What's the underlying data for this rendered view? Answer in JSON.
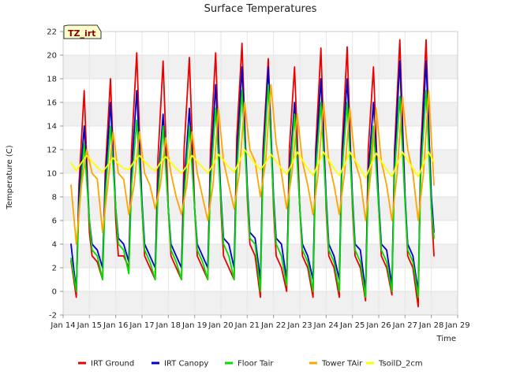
{
  "chart_data": {
    "type": "line",
    "title": "Surface Temperatures",
    "xlabel": "Time",
    "ylabel": "Temperature (C)",
    "badge": "TZ_irt",
    "xlim": [
      14,
      29
    ],
    "ylim": [
      -2,
      22
    ],
    "x_ticks": [
      {
        "value": 14,
        "label": "Jan 14"
      },
      {
        "value": 15,
        "label": "Jan 15"
      },
      {
        "value": 16,
        "label": "Jan 16"
      },
      {
        "value": 17,
        "label": "Jan 17"
      },
      {
        "value": 18,
        "label": "Jan 18"
      },
      {
        "value": 19,
        "label": "Jan 19"
      },
      {
        "value": 20,
        "label": "Jan 20"
      },
      {
        "value": 21,
        "label": "Jan 21"
      },
      {
        "value": 22,
        "label": "Jan 22"
      },
      {
        "value": 23,
        "label": "Jan 23"
      },
      {
        "value": 24,
        "label": "Jan 24"
      },
      {
        "value": 25,
        "label": "Jan 25"
      },
      {
        "value": 26,
        "label": "Jan 26"
      },
      {
        "value": 27,
        "label": "Jan 27"
      },
      {
        "value": 28,
        "label": "Jan 28"
      },
      {
        "value": 29,
        "label": "Jan 29"
      }
    ],
    "y_ticks": [
      -2,
      0,
      2,
      4,
      6,
      8,
      10,
      12,
      14,
      16,
      18,
      20,
      22
    ],
    "legend_position": "bottom",
    "grid": "alternating horizontal bands",
    "series": [
      {
        "name": "IRT Ground",
        "color": "#ee0000",
        "x": [
          14.3,
          14.5,
          14.6,
          14.8,
          15.0,
          15.1,
          15.3,
          15.5,
          15.6,
          15.8,
          16.0,
          16.1,
          16.3,
          16.5,
          16.6,
          16.8,
          17.0,
          17.1,
          17.3,
          17.5,
          17.6,
          17.8,
          18.0,
          18.1,
          18.3,
          18.5,
          18.6,
          18.8,
          19.0,
          19.1,
          19.3,
          19.5,
          19.6,
          19.8,
          20.0,
          20.1,
          20.3,
          20.5,
          20.6,
          20.8,
          21.0,
          21.1,
          21.3,
          21.5,
          21.6,
          21.8,
          22.0,
          22.1,
          22.3,
          22.5,
          22.6,
          22.8,
          23.0,
          23.1,
          23.3,
          23.5,
          23.6,
          23.8,
          24.0,
          24.1,
          24.3,
          24.5,
          24.6,
          24.8,
          25.0,
          25.1,
          25.3,
          25.5,
          25.6,
          25.8,
          26.0,
          26.1,
          26.3,
          26.5,
          26.6,
          26.8,
          27.0,
          27.1,
          27.3,
          27.5,
          27.6,
          27.8,
          28.0,
          28.1
        ],
        "y": [
          2.6,
          -0.5,
          9.0,
          17.0,
          5.0,
          3.0,
          2.5,
          1.0,
          10.0,
          18.0,
          6.0,
          3.0,
          3.0,
          2.0,
          12.0,
          20.2,
          7.0,
          3.0,
          2.0,
          1.0,
          11.0,
          19.5,
          7.0,
          3.0,
          2.0,
          1.0,
          12.0,
          19.8,
          7.0,
          3.0,
          2.0,
          1.0,
          12.0,
          20.2,
          7.0,
          3.0,
          2.0,
          1.0,
          13.0,
          21.0,
          8.0,
          4.0,
          3.0,
          -0.5,
          12.0,
          19.7,
          7.0,
          3.0,
          2.0,
          0.0,
          12.0,
          19.0,
          7.0,
          3.0,
          2.0,
          -0.5,
          12.0,
          20.6,
          7.0,
          3.0,
          2.0,
          -0.5,
          12.0,
          20.7,
          7.0,
          3.0,
          2.0,
          -0.8,
          12.0,
          19.0,
          7.0,
          3.0,
          2.0,
          -0.3,
          12.0,
          21.3,
          8.0,
          3.0,
          2.0,
          -1.3,
          12.0,
          21.3,
          7.0,
          3.0
        ]
      },
      {
        "name": "IRT Canopy",
        "color": "#0000cc",
        "x": [
          14.3,
          14.5,
          14.6,
          14.8,
          15.0,
          15.1,
          15.3,
          15.5,
          15.6,
          15.8,
          16.0,
          16.1,
          16.3,
          16.5,
          16.6,
          16.8,
          17.0,
          17.1,
          17.3,
          17.5,
          17.6,
          17.8,
          18.0,
          18.1,
          18.3,
          18.5,
          18.6,
          18.8,
          19.0,
          19.1,
          19.3,
          19.5,
          19.6,
          19.8,
          20.0,
          20.1,
          20.3,
          20.5,
          20.6,
          20.8,
          21.0,
          21.1,
          21.3,
          21.5,
          21.6,
          21.8,
          22.0,
          22.1,
          22.3,
          22.5,
          22.6,
          22.8,
          23.0,
          23.1,
          23.3,
          23.5,
          23.6,
          23.8,
          24.0,
          24.1,
          24.3,
          24.5,
          24.6,
          24.8,
          25.0,
          25.1,
          25.3,
          25.5,
          25.6,
          25.8,
          26.0,
          26.1,
          26.3,
          26.5,
          26.6,
          26.8,
          27.0,
          27.1,
          27.3,
          27.5,
          27.6,
          27.8,
          28.0,
          28.1
        ],
        "y": [
          4.0,
          0.0,
          8.0,
          14.0,
          6.0,
          4.0,
          3.5,
          2.0,
          9.0,
          16.0,
          7.0,
          4.5,
          4.0,
          2.5,
          10.0,
          17.0,
          7.5,
          4.0,
          3.0,
          2.0,
          9.0,
          15.0,
          7.0,
          4.0,
          3.0,
          2.0,
          9.0,
          15.5,
          7.0,
          4.0,
          3.0,
          2.0,
          10.0,
          17.5,
          8.0,
          4.5,
          4.0,
          2.0,
          11.0,
          19.0,
          9.0,
          5.0,
          4.5,
          1.0,
          11.0,
          19.0,
          8.0,
          4.5,
          4.0,
          1.0,
          10.0,
          16.0,
          7.0,
          4.0,
          3.0,
          1.0,
          11.0,
          18.0,
          8.0,
          4.0,
          3.0,
          1.0,
          11.0,
          18.0,
          8.0,
          4.0,
          3.5,
          0.0,
          10.0,
          16.0,
          7.5,
          4.0,
          3.5,
          0.5,
          11.0,
          19.5,
          8.0,
          4.0,
          3.0,
          0.0,
          11.0,
          19.5,
          8.0,
          5.0
        ]
      },
      {
        "name": "Floor Tair",
        "color": "#00dd00",
        "x": [
          14.3,
          14.5,
          14.6,
          14.8,
          15.0,
          15.1,
          15.3,
          15.5,
          15.6,
          15.8,
          16.0,
          16.1,
          16.3,
          16.5,
          16.6,
          16.8,
          17.0,
          17.1,
          17.3,
          17.5,
          17.6,
          17.8,
          18.0,
          18.1,
          18.3,
          18.5,
          18.6,
          18.8,
          19.0,
          19.1,
          19.3,
          19.5,
          19.6,
          19.8,
          20.0,
          20.1,
          20.3,
          20.5,
          20.6,
          20.8,
          21.0,
          21.1,
          21.3,
          21.5,
          21.6,
          21.8,
          22.0,
          22.1,
          22.3,
          22.5,
          22.6,
          22.8,
          23.0,
          23.1,
          23.3,
          23.5,
          23.6,
          23.8,
          24.0,
          24.1,
          24.3,
          24.5,
          24.6,
          24.8,
          25.0,
          25.1,
          25.3,
          25.5,
          25.6,
          25.8,
          26.0,
          26.1,
          26.3,
          26.5,
          26.6,
          26.8,
          27.0,
          27.1,
          27.3,
          27.5,
          27.6,
          27.8,
          28.0,
          28.1
        ],
        "y": [
          2.8,
          0.0,
          7.0,
          12.5,
          6.0,
          3.5,
          3.0,
          1.0,
          8.0,
          14.0,
          7.0,
          4.0,
          3.5,
          1.5,
          9.0,
          14.5,
          7.0,
          3.5,
          2.5,
          1.0,
          8.0,
          14.0,
          7.0,
          3.5,
          2.5,
          1.0,
          8.0,
          14.0,
          7.0,
          3.5,
          2.5,
          1.0,
          9.0,
          15.5,
          7.5,
          4.0,
          3.0,
          1.0,
          10.0,
          17.0,
          8.5,
          4.5,
          4.0,
          0.0,
          10.0,
          17.5,
          7.5,
          4.0,
          3.0,
          0.5,
          9.0,
          15.0,
          7.0,
          3.5,
          2.5,
          0.0,
          10.0,
          16.0,
          7.5,
          3.5,
          2.5,
          0.0,
          10.0,
          16.0,
          7.5,
          3.5,
          2.5,
          -0.5,
          9.0,
          14.0,
          7.0,
          3.5,
          2.5,
          0.0,
          10.0,
          16.5,
          7.5,
          3.5,
          2.5,
          -0.5,
          10.0,
          17.0,
          7.0,
          4.5
        ]
      },
      {
        "name": "Tower TAir",
        "color": "#ffa500",
        "x": [
          14.3,
          14.5,
          14.7,
          14.9,
          15.1,
          15.3,
          15.5,
          15.7,
          15.9,
          16.1,
          16.3,
          16.5,
          16.7,
          16.9,
          17.1,
          17.3,
          17.5,
          17.7,
          17.9,
          18.1,
          18.3,
          18.5,
          18.7,
          18.9,
          19.1,
          19.3,
          19.5,
          19.7,
          19.9,
          20.1,
          20.3,
          20.5,
          20.7,
          20.9,
          21.1,
          21.3,
          21.5,
          21.7,
          21.9,
          22.1,
          22.3,
          22.5,
          22.7,
          22.9,
          23.1,
          23.3,
          23.5,
          23.7,
          23.9,
          24.1,
          24.3,
          24.5,
          24.7,
          24.9,
          25.1,
          25.3,
          25.5,
          25.7,
          25.9,
          26.1,
          26.3,
          26.5,
          26.7,
          26.9,
          27.1,
          27.3,
          27.5,
          27.7,
          27.9,
          28.1
        ],
        "y": [
          9.0,
          4.0,
          9.0,
          12.0,
          10.0,
          9.5,
          5.0,
          9.0,
          13.5,
          10.0,
          9.5,
          6.5,
          9.0,
          13.5,
          10.0,
          9.0,
          7.0,
          9.0,
          13.0,
          10.0,
          8.0,
          6.5,
          9.0,
          13.5,
          10.0,
          8.0,
          6.0,
          9.0,
          15.5,
          11.0,
          9.0,
          7.0,
          10.0,
          16.0,
          12.0,
          11.0,
          8.0,
          11.0,
          17.5,
          12.5,
          10.0,
          7.0,
          10.0,
          15.0,
          11.0,
          9.0,
          6.5,
          10.0,
          16.0,
          11.0,
          9.0,
          6.5,
          10.0,
          15.5,
          11.0,
          9.5,
          6.0,
          10.0,
          15.5,
          11.0,
          9.0,
          6.0,
          10.0,
          16.5,
          12.0,
          10.0,
          6.0,
          10.0,
          17.0,
          9.0
        ]
      },
      {
        "name": "TsoilD_2cm",
        "color": "#ffff00",
        "x": [
          14.3,
          14.5,
          14.7,
          14.9,
          15.1,
          15.3,
          15.5,
          15.7,
          15.9,
          16.1,
          16.3,
          16.5,
          16.7,
          16.9,
          17.1,
          17.3,
          17.5,
          17.7,
          17.9,
          18.1,
          18.3,
          18.5,
          18.7,
          18.9,
          19.1,
          19.3,
          19.5,
          19.7,
          19.9,
          20.1,
          20.3,
          20.5,
          20.7,
          20.9,
          21.1,
          21.3,
          21.5,
          21.7,
          21.9,
          22.1,
          22.3,
          22.5,
          22.7,
          22.9,
          23.1,
          23.3,
          23.5,
          23.7,
          23.9,
          24.1,
          24.3,
          24.5,
          24.7,
          24.9,
          25.1,
          25.3,
          25.5,
          25.7,
          25.9,
          26.1,
          26.3,
          26.5,
          26.7,
          26.9,
          27.1,
          27.3,
          27.5,
          27.7,
          27.9,
          28.1
        ],
        "y": [
          10.9,
          10.2,
          10.9,
          11.5,
          11.0,
          10.5,
          10.1,
          10.7,
          11.3,
          10.8,
          10.4,
          10.3,
          11.0,
          11.5,
          11.0,
          10.5,
          10.2,
          10.9,
          11.4,
          10.9,
          10.4,
          10.0,
          10.6,
          11.5,
          11.0,
          10.5,
          10.0,
          10.7,
          11.6,
          11.1,
          10.5,
          10.1,
          11.0,
          12.0,
          11.4,
          10.8,
          10.3,
          10.9,
          11.6,
          11.0,
          10.4,
          9.9,
          10.8,
          11.8,
          11.1,
          10.4,
          9.8,
          10.8,
          11.8,
          11.1,
          10.4,
          9.8,
          10.7,
          11.8,
          11.1,
          10.4,
          9.6,
          10.7,
          11.7,
          11.0,
          10.3,
          9.7,
          10.8,
          11.8,
          11.1,
          10.4,
          9.7,
          10.8,
          11.8,
          10.9
        ]
      }
    ]
  }
}
